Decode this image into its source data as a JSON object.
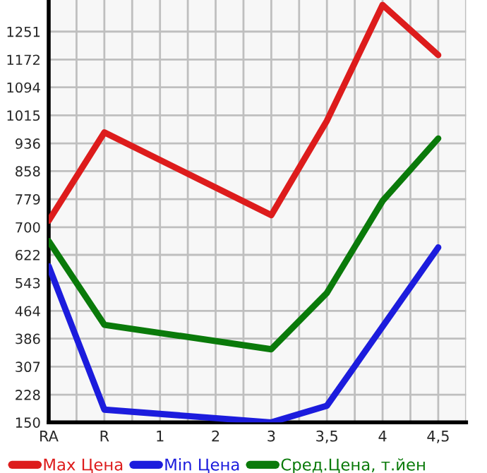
{
  "chart_data": {
    "type": "line",
    "categories": [
      "RA",
      "R",
      "1",
      "2",
      "3",
      "3,5",
      "4",
      "4,5"
    ],
    "series": [
      {
        "name": "Max Цена",
        "color": "#dd1c1c",
        "values": [
          718,
          967,
          null,
          null,
          734,
          1000,
          1326,
          1185
        ]
      },
      {
        "name": "Min Цена",
        "color": "#1c1cdd",
        "values": [
          590,
          186,
          null,
          null,
          150,
          197,
          null,
          643
        ]
      },
      {
        "name": "Сред.Цена, т.йен",
        "color": "#0a7a0a",
        "values": [
          661,
          425,
          null,
          null,
          356,
          515,
          774,
          950
        ]
      }
    ],
    "ylim": [
      150,
      1340
    ],
    "yticks": [
      150,
      228,
      307,
      386,
      464,
      543,
      622,
      700,
      779,
      858,
      936,
      1015,
      1094,
      1172,
      1251
    ],
    "grid": true,
    "legend": "bottom",
    "marker": "none",
    "line_style": "solid"
  }
}
